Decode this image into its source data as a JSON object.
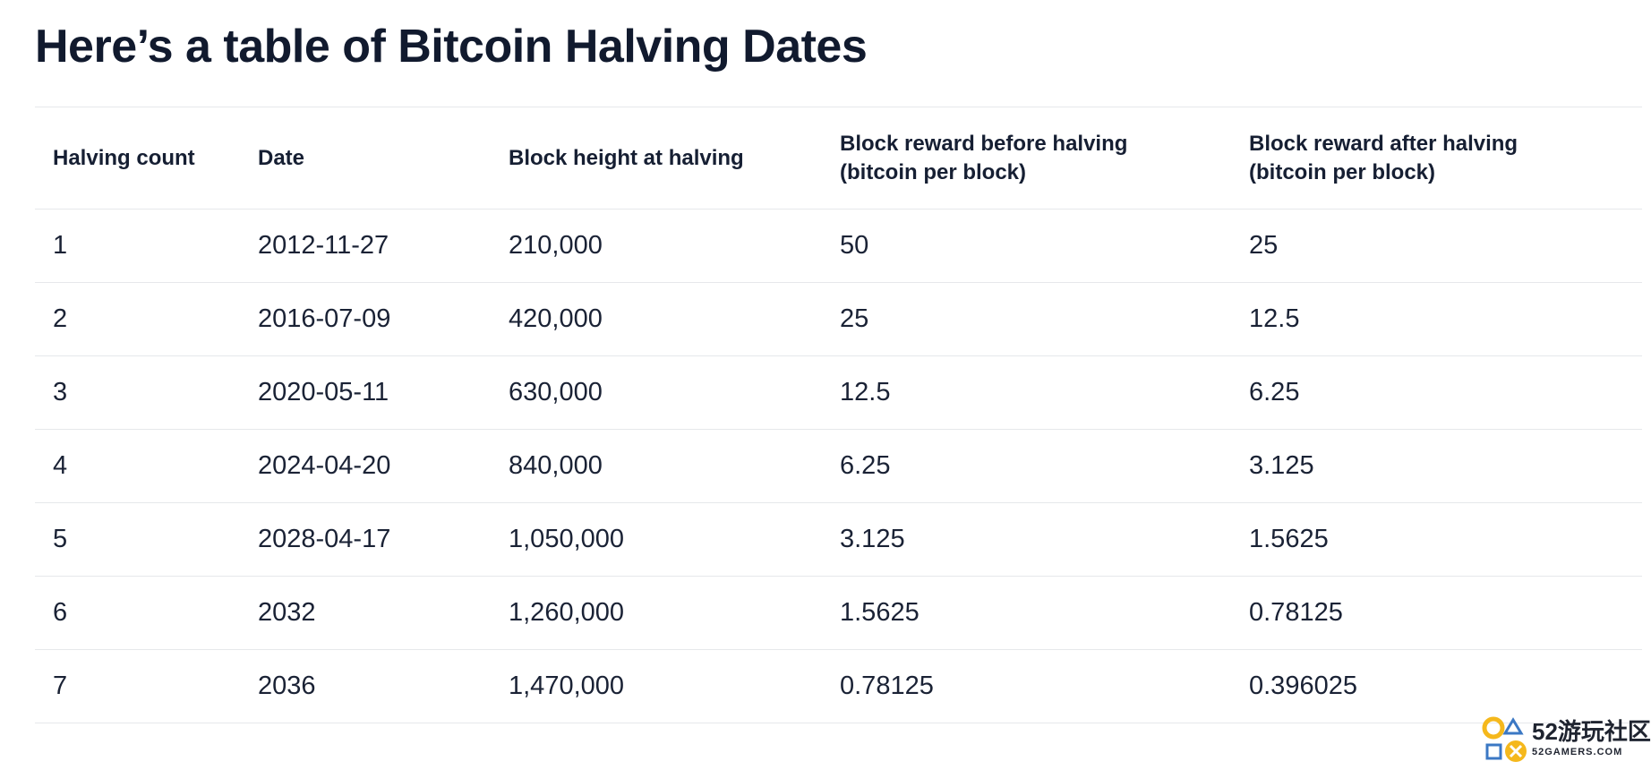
{
  "page": {
    "title": "Here’s a table of Bitcoin Halving Dates"
  },
  "table": {
    "headers": [
      "Halving count",
      "Date",
      "Block height at halving",
      [
        "Block reward before halving",
        "(bitcoin per block)"
      ],
      [
        "Block reward after halving",
        "(bitcoin per block)"
      ]
    ],
    "rows": [
      [
        "1",
        "2012-11-27",
        "210,000",
        "50",
        "25"
      ],
      [
        "2",
        "2016-07-09",
        "420,000",
        "25",
        "12.5"
      ],
      [
        "3",
        "2020-05-11",
        "630,000",
        "12.5",
        "6.25"
      ],
      [
        "4",
        "2024-04-20",
        "840,000",
        "6.25",
        "3.125"
      ],
      [
        "5",
        "2028-04-17",
        "1,050,000",
        "3.125",
        "1.5625"
      ],
      [
        "6",
        "2032",
        "1,260,000",
        "1.5625",
        "0.78125"
      ],
      [
        "7",
        "2036",
        "1,470,000",
        "0.78125",
        "0.396025"
      ]
    ]
  },
  "watermark": {
    "logo_text": "52游玩社区",
    "subtext": "52GAMERS.COM",
    "colors": {
      "yellow": "#f5b81c",
      "blue": "#3b78c4"
    }
  }
}
